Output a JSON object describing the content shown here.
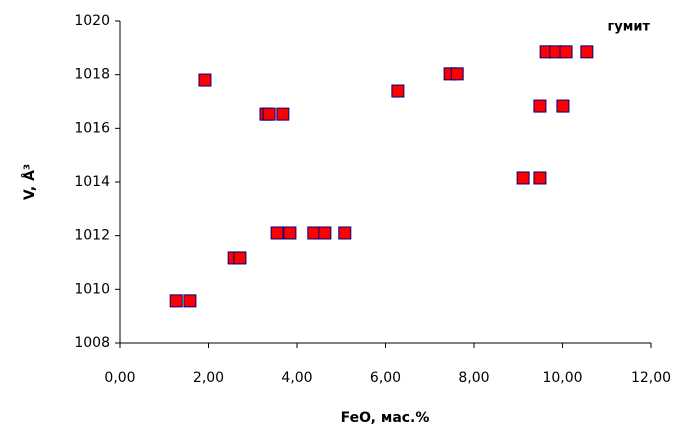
{
  "chart_data": {
    "type": "scatter",
    "annotation": "гумит",
    "x_label": "FeO, мас.%",
    "y_label": "V, Å³",
    "xlim": [
      0,
      12
    ],
    "xticks": [
      {
        "value": 0,
        "label": "0,00"
      },
      {
        "value": 2,
        "label": "2,00"
      },
      {
        "value": 4,
        "label": "4,00"
      },
      {
        "value": 6,
        "label": "6,00"
      },
      {
        "value": 8,
        "label": "8,00"
      },
      {
        "value": 10,
        "label": "10,00"
      },
      {
        "value": 12,
        "label": "12,00"
      }
    ],
    "ylim": [
      1008,
      1020
    ],
    "yticks": [
      1008,
      1010,
      1012,
      1014,
      1016,
      1018,
      1020
    ],
    "grid": false,
    "color": "#ff0000",
    "x": [
      1.27,
      1.58,
      1.92,
      2.58,
      2.71,
      3.3,
      3.37,
      3.68,
      3.55,
      3.84,
      4.38,
      4.63,
      5.08,
      6.28,
      7.46,
      7.62,
      9.11,
      9.49,
      9.49,
      10.01,
      9.63,
      9.85,
      10.08,
      10.55
    ],
    "values": [
      1009.57,
      1009.57,
      1017.8,
      1011.17,
      1011.17,
      1016.53,
      1016.53,
      1016.53,
      1012.1,
      1012.1,
      1012.1,
      1012.1,
      1012.1,
      1017.39,
      1018.03,
      1018.03,
      1014.15,
      1014.15,
      1016.83,
      1016.83,
      1018.85,
      1018.85,
      1018.85,
      1018.85
    ]
  }
}
